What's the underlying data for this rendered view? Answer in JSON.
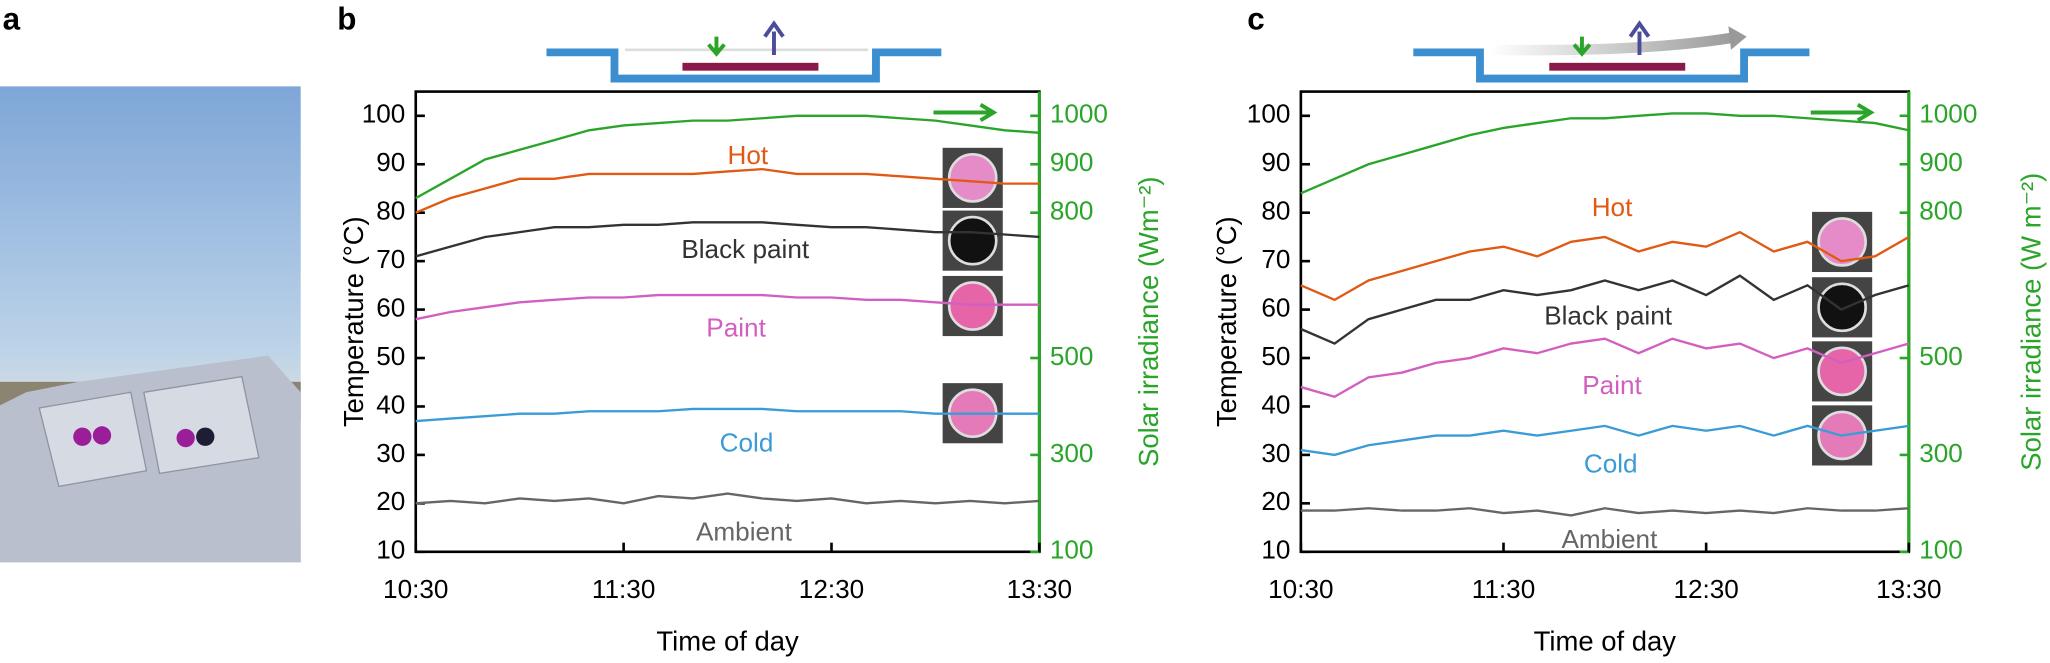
{
  "panel_labels": [
    "a",
    "b",
    "c"
  ],
  "chart_data": [
    {
      "type": "line",
      "xlabel": "Time of day",
      "ylabel": "Temperature (°C)",
      "y2label": "Solar irradiance (Wm⁻²)",
      "x": [
        "10:30",
        "10:40",
        "10:50",
        "11:00",
        "11:10",
        "11:20",
        "11:30",
        "11:40",
        "11:50",
        "12:00",
        "12:10",
        "12:20",
        "12:30",
        "12:40",
        "12:50",
        "13:00",
        "13:10",
        "13:20",
        "13:30"
      ],
      "xlim": [
        "10:30",
        "13:30"
      ],
      "xticks": [
        "10:30",
        "11:30",
        "12:30",
        "13:30"
      ],
      "ylim": [
        10,
        105
      ],
      "yticks": [
        10,
        20,
        30,
        40,
        50,
        60,
        70,
        80,
        90,
        100
      ],
      "y2lim": [
        100,
        1050
      ],
      "y2ticks": [
        100,
        300,
        500,
        800,
        900,
        1000
      ],
      "series": [
        {
          "color": "#2aa52a",
          "axis": "y2",
          "values": [
            830,
            870,
            910,
            930,
            950,
            970,
            980,
            985,
            990,
            990,
            995,
            1000,
            1000,
            1000,
            995,
            990,
            980,
            970,
            965
          ]
        },
        {
          "name": "Hot",
          "color": "#e05a14",
          "values": [
            80,
            83,
            85,
            87,
            87,
            88,
            88,
            88,
            88,
            88.5,
            89,
            88,
            88,
            88,
            87.5,
            87,
            86.5,
            86,
            86
          ]
        },
        {
          "name": "Black paint",
          "color": "#333333",
          "values": [
            71,
            73,
            75,
            76,
            77,
            77,
            77.5,
            77.5,
            78,
            78,
            78,
            77.5,
            77,
            77,
            76.5,
            76,
            76,
            75.5,
            75
          ]
        },
        {
          "name": "Paint",
          "color": "#d25fc0",
          "values": [
            58,
            59.5,
            60.5,
            61.5,
            62,
            62.5,
            62.5,
            63,
            63,
            63,
            63,
            62.5,
            62.5,
            62,
            62,
            61.5,
            61,
            61,
            61
          ]
        },
        {
          "name": "Cold",
          "color": "#3b9bd6",
          "values": [
            37,
            37.5,
            38,
            38.5,
            38.5,
            39,
            39,
            39,
            39.5,
            39.5,
            39.5,
            39,
            39,
            39,
            39,
            38.5,
            38.5,
            38.5,
            38.5
          ]
        },
        {
          "name": "Ambient",
          "color": "#666666",
          "values": [
            20,
            20.5,
            20,
            21,
            20.5,
            21,
            20,
            21.5,
            21,
            22,
            21,
            20.5,
            21,
            20,
            20.5,
            20,
            20.5,
            20,
            20.5
          ]
        }
      ]
    },
    {
      "type": "line",
      "xlabel": "Time of day",
      "ylabel": "Temperature (°C)",
      "y2label": "Solar irradiance (W m⁻²)",
      "x": [
        "10:30",
        "10:40",
        "10:50",
        "11:00",
        "11:10",
        "11:20",
        "11:30",
        "11:40",
        "11:50",
        "12:00",
        "12:10",
        "12:20",
        "12:30",
        "12:40",
        "12:50",
        "13:00",
        "13:10",
        "13:20",
        "13:30"
      ],
      "xlim": [
        "10:30",
        "13:30"
      ],
      "xticks": [
        "10:30",
        "11:30",
        "12:30",
        "13:30"
      ],
      "ylim": [
        10,
        105
      ],
      "yticks": [
        10,
        20,
        30,
        40,
        50,
        60,
        70,
        80,
        90,
        100
      ],
      "y2lim": [
        100,
        1050
      ],
      "y2ticks": [
        100,
        300,
        500,
        800,
        900,
        1000
      ],
      "series": [
        {
          "color": "#2aa52a",
          "axis": "y2",
          "values": [
            840,
            870,
            900,
            920,
            940,
            960,
            975,
            985,
            995,
            995,
            1000,
            1005,
            1005,
            1000,
            1000,
            995,
            990,
            985,
            970
          ]
        },
        {
          "name": "Hot",
          "color": "#e05a14",
          "values": [
            65,
            62,
            66,
            68,
            70,
            72,
            73,
            71,
            74,
            75,
            72,
            74,
            73,
            76,
            72,
            74,
            70,
            71,
            75
          ]
        },
        {
          "name": "Black paint",
          "color": "#333333",
          "values": [
            56,
            53,
            58,
            60,
            62,
            62,
            64,
            63,
            64,
            66,
            64,
            66,
            63,
            67,
            62,
            65,
            60,
            63,
            65
          ]
        },
        {
          "name": "Paint",
          "color": "#d25fc0",
          "values": [
            44,
            42,
            46,
            47,
            49,
            50,
            52,
            51,
            53,
            54,
            51,
            54,
            52,
            53,
            50,
            52,
            49,
            51,
            53
          ]
        },
        {
          "name": "Cold",
          "color": "#3b9bd6",
          "values": [
            31,
            30,
            32,
            33,
            34,
            34,
            35,
            34,
            35,
            36,
            34,
            36,
            35,
            36,
            34,
            36,
            34,
            35,
            36
          ]
        },
        {
          "name": "Ambient",
          "color": "#666666",
          "values": [
            18.5,
            18.5,
            19,
            18.5,
            18.5,
            19,
            18,
            18.5,
            17.5,
            19,
            18,
            18.5,
            18,
            18.5,
            18,
            19,
            18.5,
            18.5,
            19
          ]
        }
      ]
    }
  ]
}
